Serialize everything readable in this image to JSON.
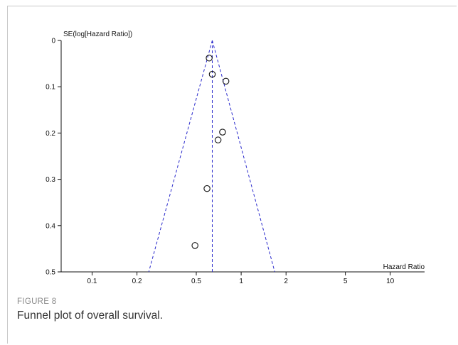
{
  "figure": {
    "label": "FIGURE 8",
    "caption": "Funnel plot of overall survival."
  },
  "chart_data": {
    "type": "scatter",
    "xlabel": "Hazard Ratio",
    "ylabel": "SE(log[Hazard Ratio])",
    "x_scale": "log",
    "xlim": [
      0.062,
      17
    ],
    "ylim": [
      0,
      0.5
    ],
    "y_reversed": true,
    "x_ticks": [
      0.1,
      0.2,
      0.5,
      1,
      2,
      5,
      10
    ],
    "x_tick_labels": [
      "0.1",
      "0.2",
      "0.5",
      "1",
      "2",
      "5",
      "10"
    ],
    "y_ticks": [
      0,
      0.1,
      0.2,
      0.3,
      0.4,
      0.5
    ],
    "y_tick_labels": [
      "0",
      "0.1",
      "0.2",
      "0.3",
      "0.4",
      "0.5"
    ],
    "pooled_estimate": 0.64,
    "funnel_bounds_at_se_max": [
      0.24,
      1.68
    ],
    "points": [
      {
        "x": 0.61,
        "y": 0.038
      },
      {
        "x": 0.64,
        "y": 0.073
      },
      {
        "x": 0.79,
        "y": 0.088
      },
      {
        "x": 0.75,
        "y": 0.198
      },
      {
        "x": 0.7,
        "y": 0.215
      },
      {
        "x": 0.59,
        "y": 0.32
      },
      {
        "x": 0.49,
        "y": 0.443
      }
    ],
    "grid": false,
    "colors": {
      "funnel": "#2a2acc",
      "points": "#111111",
      "axes": "#111111"
    }
  }
}
